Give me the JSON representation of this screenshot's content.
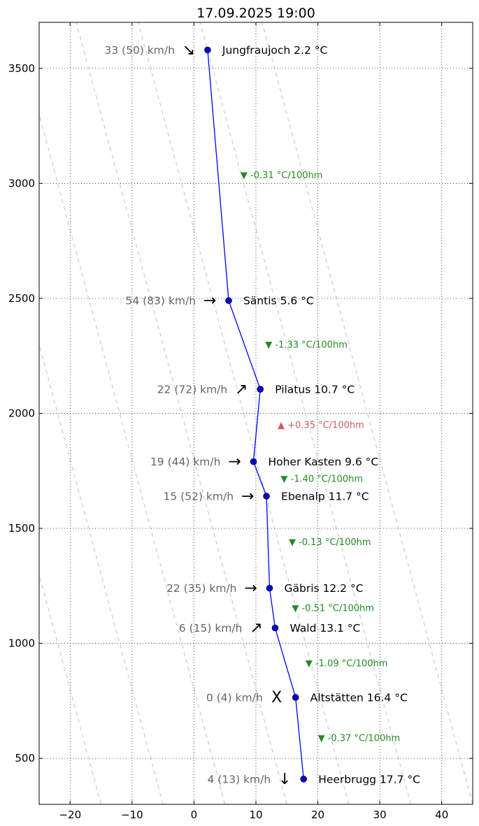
{
  "chart_data": {
    "type": "line",
    "title": "17.09.2025 19:00",
    "xlabel": "",
    "ylabel": "",
    "xlim": [
      -25,
      45
    ],
    "ylim": [
      300,
      3700
    ],
    "xticks": [
      "-20",
      "-10",
      "0",
      "10",
      "20",
      "30",
      "40"
    ],
    "yticks": [
      "500",
      "1000",
      "1500",
      "2000",
      "2500",
      "3000",
      "3500"
    ],
    "grid": true,
    "colors": {
      "line": "#0000ff",
      "marker": "#0000cc",
      "lapse_down": "#228b22",
      "lapse_up": "#cd5c5c",
      "wind_text": "#666666",
      "dry_adiabat": "#cccccc"
    },
    "stations": [
      {
        "name": "Jungfraujoch",
        "label": "Jungfraujoch 2.2 °C",
        "altitude": 3580,
        "temp": 2.2,
        "wind": "33 (50) km/h",
        "wind_arrow": "↘"
      },
      {
        "name": "Säntis",
        "label": "Säntis 5.6 °C",
        "altitude": 2490,
        "temp": 5.6,
        "wind": "54 (83) km/h",
        "wind_arrow": "→"
      },
      {
        "name": "Pilatus",
        "label": "Pilatus 10.7 °C",
        "altitude": 2105,
        "temp": 10.7,
        "wind": "22 (72) km/h",
        "wind_arrow": "↗"
      },
      {
        "name": "Hoher Kasten",
        "label": "Hoher Kasten 9.6 °C",
        "altitude": 1790,
        "temp": 9.6,
        "wind": "19 (44) km/h",
        "wind_arrow": "→"
      },
      {
        "name": "Ebenalp",
        "label": "Ebenalp 11.7 °C",
        "altitude": 1640,
        "temp": 11.7,
        "wind": "15 (52) km/h",
        "wind_arrow": "→"
      },
      {
        "name": "Gäbris",
        "label": "Gäbris 12.2 °C",
        "altitude": 1240,
        "temp": 12.2,
        "wind": "22 (35) km/h",
        "wind_arrow": "→"
      },
      {
        "name": "Wald",
        "label": "Wald 13.1 °C",
        "altitude": 1067,
        "temp": 13.1,
        "wind": "6 (15) km/h",
        "wind_arrow": "↗"
      },
      {
        "name": "Altstätten",
        "label": "Altstätten 16.4 °C",
        "altitude": 765,
        "temp": 16.4,
        "wind": "0 (4) km/h",
        "wind_arrow": "X"
      },
      {
        "name": "Heerbrugg",
        "label": "Heerbrugg 17.7 °C",
        "altitude": 410,
        "temp": 17.7,
        "wind": "4 (13) km/h",
        "wind_arrow": "↓"
      }
    ],
    "lapse_rates": [
      {
        "text": "▼ -0.31 °C/100hm",
        "direction": "down",
        "altitude": 3035,
        "x": 7.5
      },
      {
        "text": "▼ -1.33 °C/100hm",
        "direction": "down",
        "altitude": 2298,
        "x": 11.5
      },
      {
        "text": "▲ +0.35 °C/100hm",
        "direction": "up",
        "altitude": 1948,
        "x": 13.5
      },
      {
        "text": "▼ -1.40 °C/100hm",
        "direction": "down",
        "altitude": 1715,
        "x": 14.0
      },
      {
        "text": "▼ -0.13 °C/100hm",
        "direction": "down",
        "altitude": 1440,
        "x": 15.3
      },
      {
        "text": "▼ -0.51 °C/100hm",
        "direction": "down",
        "altitude": 1153,
        "x": 15.8
      },
      {
        "text": "▼ -1.09 °C/100hm",
        "direction": "down",
        "altitude": 913,
        "x": 18.0
      },
      {
        "text": "▼ -0.37 °C/100hm",
        "direction": "down",
        "altitude": 587,
        "x": 20.0
      }
    ],
    "dry_adiabats_at_300m": [
      -55,
      -45,
      -35,
      -25,
      -15,
      -5,
      5,
      15,
      25,
      35,
      45
    ],
    "dry_adiabat_lapse_per_100m": 1.0
  }
}
